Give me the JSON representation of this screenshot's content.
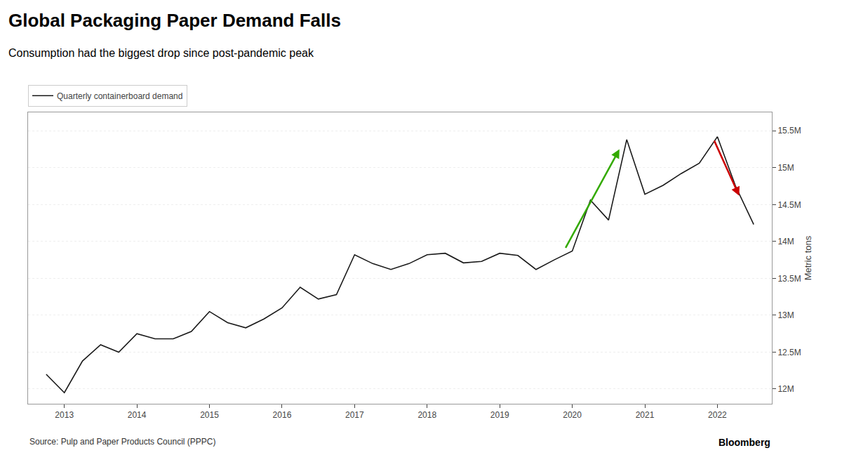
{
  "chart_data": {
    "type": "line",
    "title": "Global Packaging Paper Demand Falls",
    "subtitle": "Consumption had the biggest drop since post-pandemic peak",
    "ylabel": "Metric tons",
    "source": "Source: Pulp and Paper Products Council (PPPC)",
    "credit": "Bloomberg",
    "x": [
      2012.75,
      2013.0,
      2013.25,
      2013.5,
      2013.75,
      2014.0,
      2014.25,
      2014.5,
      2014.75,
      2015.0,
      2015.25,
      2015.5,
      2015.75,
      2016.0,
      2016.25,
      2016.5,
      2016.75,
      2017.0,
      2017.25,
      2017.5,
      2017.75,
      2018.0,
      2018.25,
      2018.5,
      2018.75,
      2019.0,
      2019.25,
      2019.5,
      2019.75,
      2020.0,
      2020.25,
      2020.5,
      2020.75,
      2021.0,
      2021.25,
      2021.5,
      2021.75,
      2022.0,
      2022.25,
      2022.5
    ],
    "series": [
      {
        "name": "Quarterly containerboard demand",
        "color": "#1a1a1a",
        "values": [
          12200000,
          11950000,
          12380000,
          12600000,
          12500000,
          12750000,
          12680000,
          12680000,
          12780000,
          13050000,
          12900000,
          12830000,
          12950000,
          13100000,
          13380000,
          13220000,
          13280000,
          13820000,
          13700000,
          13620000,
          13700000,
          13820000,
          13840000,
          13710000,
          13730000,
          13840000,
          13810000,
          13620000,
          13750000,
          13870000,
          14560000,
          14290000,
          15380000,
          14640000,
          14760000,
          14920000,
          15060000,
          15420000,
          14750000,
          14230000
        ]
      }
    ],
    "xlim": [
      2012.5,
      2022.75
    ],
    "xticks": [
      2013,
      2014,
      2015,
      2016,
      2017,
      2018,
      2019,
      2020,
      2021,
      2022
    ],
    "ylim": [
      11800000,
      15750000
    ],
    "yticks": [
      {
        "value": 12000000,
        "label": "12M"
      },
      {
        "value": 12500000,
        "label": "12.5M"
      },
      {
        "value": 13000000,
        "label": "13M"
      },
      {
        "value": 13500000,
        "label": "13.5M"
      },
      {
        "value": 14000000,
        "label": "14M"
      },
      {
        "value": 14500000,
        "label": "14.5M"
      },
      {
        "value": 15000000,
        "label": "15M"
      },
      {
        "value": 15500000,
        "label": "15.5M"
      }
    ],
    "grid": "y",
    "legend": "upper left",
    "arrows": [
      {
        "x0": 2019.9,
        "y0": 13900000,
        "x1": 2020.65,
        "y1": 15250000,
        "color": "#33aa00"
      },
      {
        "x0": 2021.95,
        "y0": 15380000,
        "x1": 2022.3,
        "y1": 14620000,
        "color": "#cc0000"
      }
    ]
  }
}
